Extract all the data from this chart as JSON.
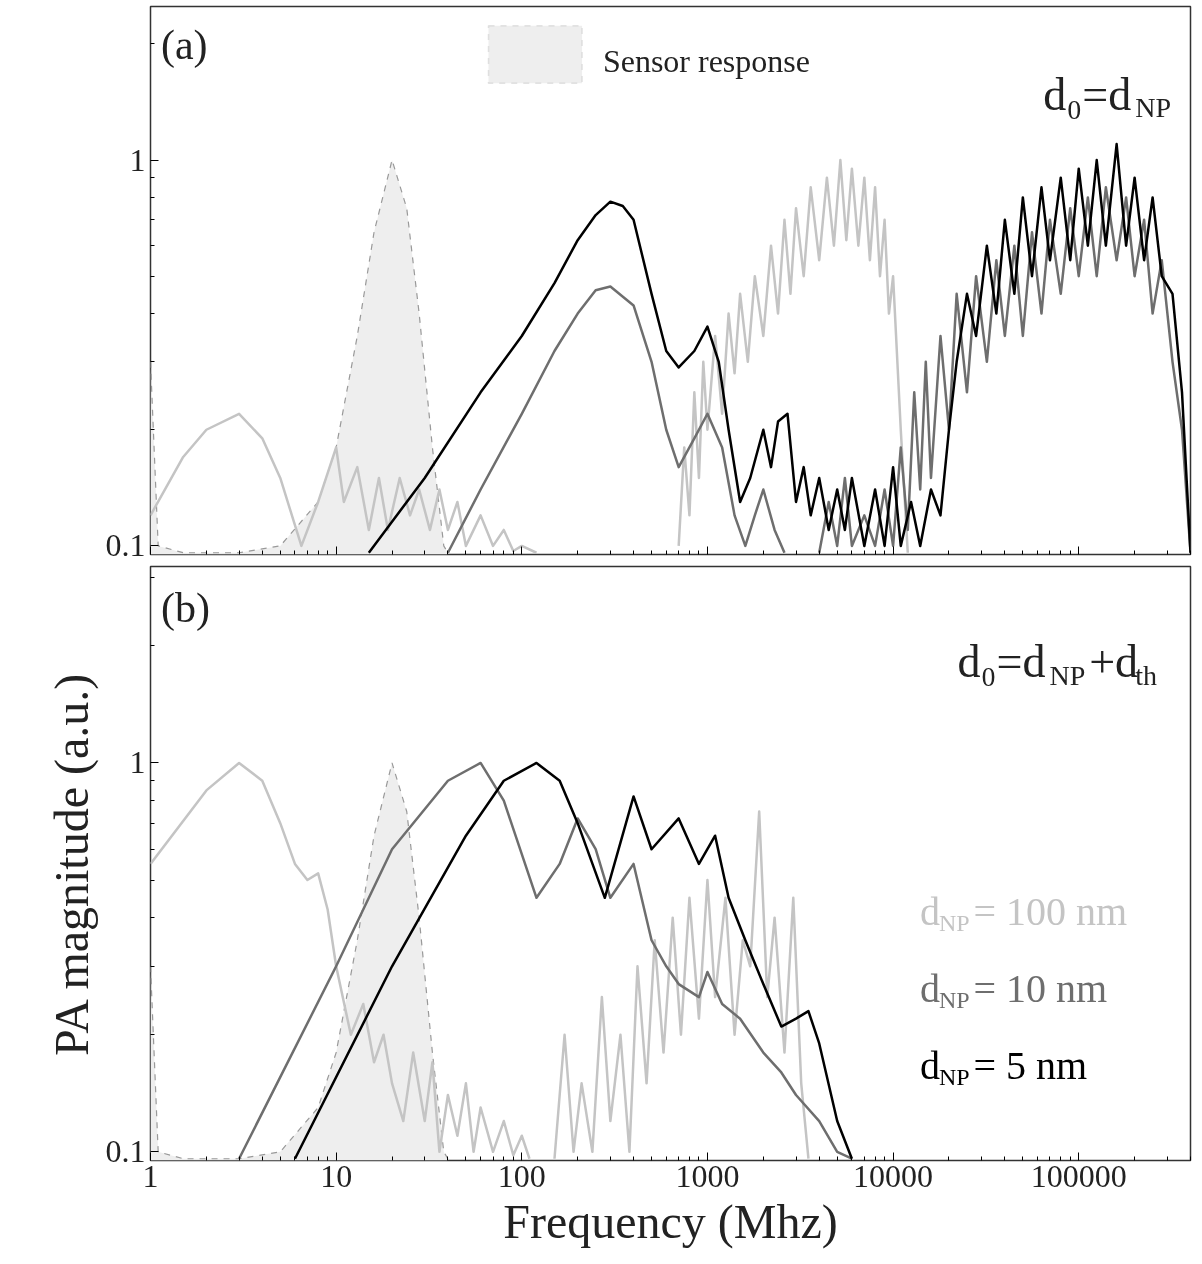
{
  "chart_data": [
    {
      "type": "line",
      "log": "xy",
      "grid": false,
      "legend": "top",
      "tick_labels": "y",
      "xlim": [
        1,
        400000
      ],
      "ylim": [
        0.095,
        2.5
      ],
      "xticks": [
        1,
        10,
        100,
        1000,
        10000,
        100000
      ],
      "yticks": [
        0.1,
        1
      ],
      "annotations": [
        "(a)",
        "d₀=d$_{NP}$"
      ],
      "series": [
        {
          "name": "Sensor response",
          "type": "area",
          "line_style": "dashed",
          "color": "#eeeeee",
          "x": [
            1,
            1.1,
            1.5,
            3,
            5,
            8,
            10,
            13,
            16,
            20,
            24,
            28,
            33,
            38,
            40
          ],
          "values": [
            0.3,
            0.1,
            0.096,
            0.096,
            0.1,
            0.13,
            0.18,
            0.35,
            0.65,
            1,
            0.75,
            0.4,
            0.18,
            0.1,
            0.096
          ]
        },
        {
          "color": "#c4c4c4",
          "x": [
            1,
            1.5,
            2,
            3,
            4,
            5,
            6.5,
            8,
            10,
            11,
            13,
            15,
            17,
            19,
            22,
            25,
            28,
            32,
            36,
            40,
            45,
            50,
            60,
            70,
            80,
            90,
            100,
            120,
            300,
            700,
            750,
            800,
            850,
            900,
            950,
            1000,
            1100,
            1200,
            1300,
            1400,
            1500,
            1650,
            1800,
            2000,
            2200,
            2400,
            2600,
            2800,
            3000,
            3300,
            3600,
            4000,
            4400,
            4800,
            5200,
            5600,
            6000,
            6500,
            7000,
            7500,
            8000,
            8500,
            9000,
            9500,
            10000,
            11000,
            12000
          ],
          "values": [
            0.12,
            0.17,
            0.2,
            0.22,
            0.19,
            0.15,
            0.1,
            0.13,
            0.18,
            0.13,
            0.16,
            0.11,
            0.15,
            0.11,
            0.15,
            0.12,
            0.14,
            0.11,
            0.14,
            0.11,
            0.13,
            0.1,
            0.12,
            0.1,
            0.11,
            0.097,
            0.1,
            0.096,
            null,
            0.1,
            0.18,
            0.12,
            0.25,
            0.15,
            0.3,
            0.2,
            0.35,
            0.22,
            0.4,
            0.28,
            0.45,
            0.3,
            0.5,
            0.35,
            0.6,
            0.4,
            0.7,
            0.45,
            0.75,
            0.5,
            0.85,
            0.55,
            0.9,
            0.6,
            1.0,
            0.62,
            0.95,
            0.6,
            0.9,
            0.55,
            0.85,
            0.5,
            0.7,
            0.4,
            0.5,
            0.2,
            0.096
          ]
        },
        {
          "color": "#6e6e6e",
          "x": [
            40,
            60,
            100,
            150,
            200,
            250,
            300,
            400,
            500,
            600,
            700,
            850,
            1000,
            1200,
            1400,
            1600,
            1800,
            2000,
            2300,
            2600,
            3000,
            4000,
            4500,
            5000,
            5500,
            6000,
            7000,
            8000,
            9000,
            10000,
            11000,
            12000,
            13000,
            14000,
            15000,
            16000,
            18000,
            20000,
            22000,
            25000,
            28000,
            32000,
            36000,
            40000,
            45000,
            50000,
            56000,
            63000,
            70000,
            80000,
            90000,
            100000,
            112000,
            125000,
            140000,
            160000,
            180000,
            200000,
            225000,
            250000,
            280000,
            320000,
            360000,
            400000
          ],
          "values": [
            0.096,
            0.14,
            0.22,
            0.32,
            0.4,
            0.46,
            0.47,
            0.42,
            0.3,
            0.2,
            0.16,
            0.19,
            0.22,
            0.18,
            0.12,
            0.1,
            0.12,
            0.14,
            0.11,
            0.096,
            null,
            0.096,
            0.13,
            0.1,
            0.15,
            0.1,
            0.12,
            0.1,
            0.14,
            0.1,
            0.18,
            0.11,
            0.25,
            0.14,
            0.3,
            0.15,
            0.35,
            0.2,
            0.45,
            0.25,
            0.5,
            0.3,
            0.55,
            0.35,
            0.6,
            0.35,
            0.65,
            0.4,
            0.7,
            0.45,
            0.75,
            0.5,
            0.8,
            0.5,
            0.85,
            0.55,
            0.8,
            0.5,
            0.7,
            0.4,
            0.55,
            0.3,
            0.2,
            0.096
          ]
        },
        {
          "color": "#000000",
          "x": [
            15,
            30,
            60,
            100,
            150,
            200,
            250,
            300,
            350,
            400,
            500,
            600,
            700,
            850,
            1000,
            1150,
            1300,
            1500,
            1700,
            2000,
            2200,
            2400,
            2700,
            3000,
            3300,
            3600,
            4000,
            4500,
            5000,
            5500,
            6000,
            7000,
            8000,
            9000,
            10000,
            11000,
            12500,
            14000,
            16000,
            18000,
            20000,
            22000,
            25000,
            28000,
            32000,
            36000,
            40000,
            45000,
            50000,
            56000,
            63000,
            70000,
            80000,
            90000,
            100000,
            112000,
            125000,
            140000,
            160000,
            180000,
            200000,
            225000,
            250000,
            280000,
            320000,
            360000,
            400000
          ],
          "values": [
            0.096,
            0.15,
            0.25,
            0.35,
            0.48,
            0.62,
            0.72,
            0.78,
            0.76,
            0.7,
            0.45,
            0.32,
            0.29,
            0.32,
            0.37,
            0.3,
            0.2,
            0.13,
            0.15,
            0.2,
            0.16,
            0.21,
            0.22,
            0.13,
            0.16,
            0.12,
            0.15,
            0.11,
            0.14,
            0.11,
            0.15,
            0.1,
            0.14,
            0.1,
            0.16,
            0.1,
            0.13,
            0.1,
            0.14,
            0.12,
            0.2,
            0.3,
            0.45,
            0.35,
            0.6,
            0.4,
            0.7,
            0.45,
            0.8,
            0.5,
            0.85,
            0.55,
            0.9,
            0.55,
            0.95,
            0.6,
            1.0,
            0.6,
            1.1,
            0.6,
            0.9,
            0.55,
            0.8,
            0.5,
            0.45,
            0.25,
            0.096
          ]
        }
      ]
    },
    {
      "type": "line",
      "log": "xy",
      "grid": false,
      "legend": "right",
      "xlim": [
        1,
        400000
      ],
      "ylim": [
        0.095,
        3.2
      ],
      "xticks": [
        1,
        10,
        100,
        1000,
        10000,
        100000
      ],
      "yticks": [
        0.1,
        1
      ],
      "xlabel": "Frequency (Mhz)",
      "ylabel": "PA magnitude (a.u.)",
      "annotations": [
        "(b)",
        "d₀=d$_{NP}$+d$_{th}$"
      ],
      "series": [
        {
          "type": "area",
          "line_style": "dashed",
          "color": "#eeeeee",
          "x": [
            1,
            1.1,
            1.5,
            3,
            5,
            8,
            10,
            13,
            16,
            20,
            24,
            28,
            33,
            38,
            40
          ],
          "values": [
            0.3,
            0.1,
            0.096,
            0.096,
            0.1,
            0.13,
            0.18,
            0.35,
            0.65,
            1,
            0.75,
            0.4,
            0.18,
            0.1,
            0.096
          ]
        },
        {
          "name": "d$_{NP}$= 100 nm",
          "color": "#c4c4c4",
          "x": [
            1,
            2,
            3,
            4,
            5,
            6,
            7,
            8,
            9,
            10,
            12,
            14,
            16,
            18,
            20,
            23,
            26,
            30,
            33,
            36,
            40,
            45,
            50,
            55,
            60,
            70,
            80,
            90,
            100,
            110,
            130,
            150,
            170,
            190,
            210,
            240,
            270,
            300,
            340,
            380,
            420,
            470,
            520,
            580,
            650,
            720,
            800,
            900,
            1000,
            1100,
            1250,
            1400,
            1550,
            1700,
            1900,
            2100,
            2300,
            2600,
            2900,
            3200,
            3500
          ],
          "values": [
            0.55,
            0.85,
            1.0,
            0.9,
            0.7,
            0.55,
            0.5,
            0.52,
            0.42,
            0.3,
            0.2,
            0.24,
            0.17,
            0.2,
            0.15,
            0.12,
            0.18,
            0.12,
            0.17,
            0.1,
            0.14,
            0.11,
            0.15,
            0.1,
            0.13,
            0.1,
            0.12,
            0.098,
            0.11,
            0.096,
            null,
            0.096,
            0.2,
            0.1,
            0.15,
            0.1,
            0.25,
            0.12,
            0.2,
            0.1,
            0.3,
            0.15,
            0.35,
            0.18,
            0.4,
            0.2,
            0.45,
            0.22,
            0.5,
            0.25,
            0.45,
            0.2,
            0.35,
            0.3,
            0.75,
            0.25,
            0.4,
            0.18,
            0.45,
            0.15,
            0.096
          ]
        },
        {
          "name": "d$_{NP}$= 10 nm",
          "color": "#6e6e6e",
          "x": [
            3,
            10,
            20,
            40,
            60,
            80,
            120,
            160,
            200,
            250,
            300,
            400,
            500,
            600,
            700,
            900,
            1000,
            1200,
            1500,
            2000,
            2500,
            3000,
            4000,
            5000,
            6000
          ],
          "values": [
            0.096,
            0.3,
            0.6,
            0.9,
            1.0,
            0.8,
            0.45,
            0.55,
            0.72,
            0.6,
            0.45,
            0.55,
            0.35,
            0.3,
            0.27,
            0.25,
            0.29,
            0.24,
            0.22,
            0.18,
            0.16,
            0.14,
            0.12,
            0.1,
            0.096
          ]
        },
        {
          "name": "d$_{NP}$= 5 nm",
          "color": "#000000",
          "x": [
            6,
            20,
            50,
            80,
            120,
            160,
            200,
            280,
            400,
            500,
            700,
            900,
            1100,
            1300,
            1600,
            2000,
            2500,
            3000,
            3500,
            4000,
            5000,
            6000
          ],
          "values": [
            0.096,
            0.3,
            0.65,
            0.9,
            1.0,
            0.9,
            0.7,
            0.45,
            0.82,
            0.6,
            0.72,
            0.55,
            0.65,
            0.45,
            0.35,
            0.27,
            0.21,
            0.22,
            0.23,
            0.19,
            0.12,
            0.096
          ]
        }
      ]
    }
  ]
}
